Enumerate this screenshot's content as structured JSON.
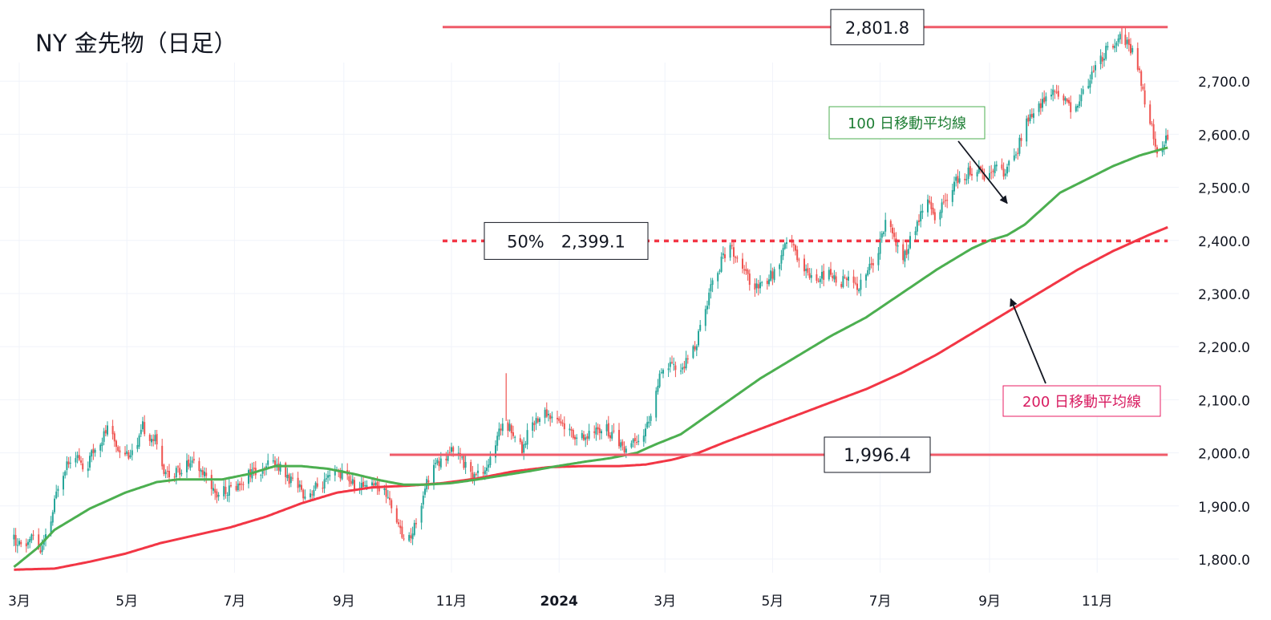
{
  "chart_data": {
    "type": "candlestick",
    "title": "NY 金先物（日足）",
    "ylim": [
      1780,
      2815
    ],
    "y_ticks": [
      {
        "value": 1800,
        "label": "1,800.0"
      },
      {
        "value": 1900,
        "label": "1,900.0"
      },
      {
        "value": 2000,
        "label": "2,000.0"
      },
      {
        "value": 2100,
        "label": "2,100.0"
      },
      {
        "value": 2200,
        "label": "2,200.0"
      },
      {
        "value": 2300,
        "label": "2,300.0"
      },
      {
        "value": 2400,
        "label": "2,400.0"
      },
      {
        "value": 2500,
        "label": "2,500.0"
      },
      {
        "value": 2600,
        "label": "2,600.0"
      },
      {
        "value": 2700,
        "label": "2,700.0"
      }
    ],
    "x_ticks": [
      {
        "label": "3月",
        "day": 0
      },
      {
        "label": "5月",
        "day": 61
      },
      {
        "label": "7月",
        "day": 122
      },
      {
        "label": "9月",
        "day": 184
      },
      {
        "label": "11月",
        "day": 245
      },
      {
        "label": "2024",
        "day": 306,
        "bold": true
      },
      {
        "label": "3月",
        "day": 366
      },
      {
        "label": "5月",
        "day": 427
      },
      {
        "label": "7月",
        "day": 488
      },
      {
        "label": "9月",
        "day": 550
      },
      {
        "label": "11月",
        "day": 611
      }
    ],
    "price_anchors": [
      [
        -3,
        1835
      ],
      [
        2,
        1820
      ],
      [
        8,
        1845
      ],
      [
        12,
        1815
      ],
      [
        17,
        1855
      ],
      [
        22,
        1940
      ],
      [
        27,
        1985
      ],
      [
        32,
        2000
      ],
      [
        37,
        1965
      ],
      [
        43,
        2010
      ],
      [
        50,
        2045
      ],
      [
        56,
        2010
      ],
      [
        62,
        2000
      ],
      [
        67,
        2010
      ],
      [
        70,
        2050
      ],
      [
        73,
        2035
      ],
      [
        77,
        2025
      ],
      [
        82,
        1970
      ],
      [
        87,
        1955
      ],
      [
        94,
        1975
      ],
      [
        100,
        1975
      ],
      [
        106,
        1955
      ],
      [
        112,
        1920
      ],
      [
        118,
        1930
      ],
      [
        124,
        1940
      ],
      [
        131,
        1965
      ],
      [
        138,
        1960
      ],
      [
        143,
        1985
      ],
      [
        147,
        1975
      ],
      [
        152,
        1955
      ],
      [
        157,
        1935
      ],
      [
        163,
        1920
      ],
      [
        168,
        1935
      ],
      [
        174,
        1945
      ],
      [
        180,
        1965
      ],
      [
        186,
        1955
      ],
      [
        192,
        1930
      ],
      [
        198,
        1950
      ],
      [
        205,
        1935
      ],
      [
        210,
        1915
      ],
      [
        214,
        1860
      ],
      [
        220,
        1830
      ],
      [
        226,
        1880
      ],
      [
        230,
        1940
      ],
      [
        235,
        1975
      ],
      [
        240,
        1985
      ],
      [
        245,
        2000
      ],
      [
        250,
        1990
      ],
      [
        256,
        1955
      ],
      [
        262,
        1965
      ],
      [
        268,
        1990
      ],
      [
        274,
        2060
      ],
      [
        279,
        2040
      ],
      [
        285,
        2010
      ],
      [
        291,
        2060
      ],
      [
        298,
        2075
      ],
      [
        305,
        2065
      ],
      [
        312,
        2040
      ],
      [
        318,
        2025
      ],
      [
        325,
        2035
      ],
      [
        331,
        2050
      ],
      [
        337,
        2030
      ],
      [
        343,
        2010
      ],
      [
        348,
        2025
      ],
      [
        354,
        2035
      ],
      [
        358,
        2075
      ],
      [
        363,
        2140
      ],
      [
        368,
        2165
      ],
      [
        374,
        2155
      ],
      [
        379,
        2175
      ],
      [
        384,
        2210
      ],
      [
        389,
        2270
      ],
      [
        393,
        2330
      ],
      [
        398,
        2360
      ],
      [
        403,
        2385
      ],
      [
        409,
        2350
      ],
      [
        414,
        2325
      ],
      [
        420,
        2310
      ],
      [
        425,
        2330
      ],
      [
        431,
        2350
      ],
      [
        436,
        2415
      ],
      [
        440,
        2375
      ],
      [
        446,
        2345
      ],
      [
        452,
        2330
      ],
      [
        458,
        2340
      ],
      [
        464,
        2320
      ],
      [
        470,
        2325
      ],
      [
        476,
        2315
      ],
      [
        482,
        2350
      ],
      [
        487,
        2380
      ],
      [
        491,
        2440
      ],
      [
        495,
        2410
      ],
      [
        498,
        2385
      ],
      [
        501,
        2365
      ],
      [
        505,
        2400
      ],
      [
        510,
        2440
      ],
      [
        515,
        2475
      ],
      [
        519,
        2440
      ],
      [
        524,
        2470
      ],
      [
        529,
        2505
      ],
      [
        535,
        2520
      ],
      [
        541,
        2535
      ],
      [
        547,
        2525
      ],
      [
        552,
        2540
      ],
      [
        558,
        2530
      ],
      [
        564,
        2550
      ],
      [
        569,
        2610
      ],
      [
        575,
        2640
      ],
      [
        581,
        2670
      ],
      [
        587,
        2680
      ],
      [
        592,
        2660
      ],
      [
        597,
        2650
      ],
      [
        602,
        2665
      ],
      [
        607,
        2710
      ],
      [
        612,
        2740
      ],
      [
        617,
        2760
      ],
      [
        621,
        2775
      ],
      [
        625,
        2785
      ],
      [
        628,
        2770
      ],
      [
        632,
        2750
      ],
      [
        636,
        2700
      ],
      [
        639,
        2650
      ],
      [
        642,
        2610
      ],
      [
        645,
        2570
      ],
      [
        648,
        2580
      ],
      [
        651,
        2590
      ]
    ],
    "ma100_anchors": [
      [
        -3,
        1785
      ],
      [
        10,
        1820
      ],
      [
        20,
        1855
      ],
      [
        40,
        1895
      ],
      [
        60,
        1925
      ],
      [
        78,
        1945
      ],
      [
        90,
        1950
      ],
      [
        100,
        1950
      ],
      [
        115,
        1950
      ],
      [
        130,
        1960
      ],
      [
        145,
        1975
      ],
      [
        160,
        1975
      ],
      [
        175,
        1970
      ],
      [
        190,
        1960
      ],
      [
        205,
        1948
      ],
      [
        218,
        1940
      ],
      [
        230,
        1940
      ],
      [
        245,
        1943
      ],
      [
        260,
        1950
      ],
      [
        275,
        1958
      ],
      [
        290,
        1966
      ],
      [
        305,
        1975
      ],
      [
        320,
        1983
      ],
      [
        335,
        1990
      ],
      [
        350,
        2000
      ],
      [
        360,
        2015
      ],
      [
        375,
        2035
      ],
      [
        390,
        2070
      ],
      [
        405,
        2105
      ],
      [
        420,
        2140
      ],
      [
        440,
        2180
      ],
      [
        460,
        2220
      ],
      [
        480,
        2255
      ],
      [
        500,
        2300
      ],
      [
        520,
        2345
      ],
      [
        540,
        2385
      ],
      [
        550,
        2400
      ],
      [
        560,
        2410
      ],
      [
        570,
        2430
      ],
      [
        580,
        2460
      ],
      [
        590,
        2490
      ],
      [
        605,
        2515
      ],
      [
        620,
        2540
      ],
      [
        635,
        2560
      ],
      [
        651,
        2575
      ]
    ],
    "ma200_anchors": [
      [
        -3,
        1780
      ],
      [
        20,
        1782
      ],
      [
        40,
        1795
      ],
      [
        60,
        1810
      ],
      [
        80,
        1830
      ],
      [
        100,
        1845
      ],
      [
        120,
        1860
      ],
      [
        140,
        1880
      ],
      [
        160,
        1905
      ],
      [
        180,
        1925
      ],
      [
        200,
        1935
      ],
      [
        220,
        1938
      ],
      [
        240,
        1943
      ],
      [
        260,
        1952
      ],
      [
        280,
        1965
      ],
      [
        300,
        1973
      ],
      [
        320,
        1975
      ],
      [
        340,
        1975
      ],
      [
        355,
        1978
      ],
      [
        370,
        1987
      ],
      [
        385,
        2000
      ],
      [
        400,
        2020
      ],
      [
        420,
        2045
      ],
      [
        440,
        2070
      ],
      [
        460,
        2095
      ],
      [
        480,
        2120
      ],
      [
        500,
        2150
      ],
      [
        520,
        2185
      ],
      [
        540,
        2225
      ],
      [
        560,
        2265
      ],
      [
        580,
        2305
      ],
      [
        600,
        2345
      ],
      [
        620,
        2380
      ],
      [
        640,
        2410
      ],
      [
        651,
        2425
      ]
    ],
    "series": [
      {
        "name": "100 日移動平均線",
        "color": "#4caf50"
      },
      {
        "name": "200 日移動平均線",
        "color": "#f23645"
      }
    ],
    "candle_colors": {
      "up": "#26a69a",
      "down": "#ef5350"
    },
    "levels": [
      {
        "name": "high-level",
        "value": 2801.8,
        "label": "2,801.8",
        "from_day": 240,
        "to_day": 651
      },
      {
        "name": "fib-50-level",
        "value": 2399.1,
        "label": "50%　2,399.1",
        "dotted": true,
        "from_day": 240,
        "to_day": 651
      },
      {
        "name": "low-level",
        "value": 1996.4,
        "label": "1,996.4",
        "from_day": 210,
        "to_day": 651
      }
    ],
    "annotations": [
      {
        "name": "ma100-label",
        "text": "100 日移動平均線",
        "color": "#1e7e34",
        "arrow_to_day": 560,
        "arrow_to_value": 2470
      },
      {
        "name": "ma200-label",
        "text": "200 日移動平均線",
        "color": "#d81b60",
        "arrow_to_day": 562,
        "arrow_to_value": 2290
      }
    ]
  }
}
